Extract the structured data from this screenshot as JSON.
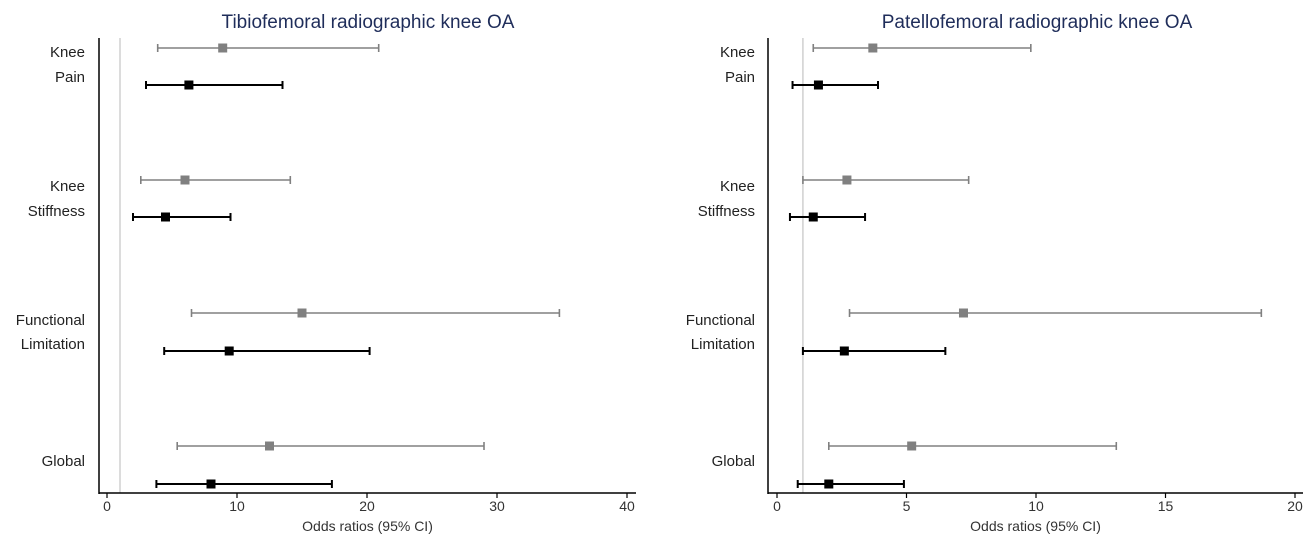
{
  "chart_data": [
    {
      "type": "forest",
      "title": "Tibiofemoral radiographic knee OA",
      "xlabel": "Odds ratios (95% CI)",
      "xlim": [
        0,
        40
      ],
      "xticks": [
        0,
        10,
        20,
        30,
        40
      ],
      "reference_line": 1,
      "series": [
        {
          "color": "#808080"
        },
        {
          "color": "#000000"
        }
      ],
      "categories": [
        {
          "label_lines": [
            "Knee",
            "Pain"
          ],
          "estimates": [
            {
              "or": 8.9,
              "low": 3.9,
              "high": 20.9
            },
            {
              "or": 6.3,
              "low": 3.0,
              "high": 13.5
            }
          ]
        },
        {
          "label_lines": [
            "Knee",
            "Stiffness"
          ],
          "estimates": [
            {
              "or": 6.0,
              "low": 2.6,
              "high": 14.1
            },
            {
              "or": 4.5,
              "low": 2.0,
              "high": 9.5
            }
          ]
        },
        {
          "label_lines": [
            "Functional",
            "Limitation"
          ],
          "estimates": [
            {
              "or": 15.0,
              "low": 6.5,
              "high": 34.8
            },
            {
              "or": 9.4,
              "low": 4.4,
              "high": 20.2
            }
          ]
        },
        {
          "label_lines": [
            "Global"
          ],
          "estimates": [
            {
              "or": 12.5,
              "low": 5.4,
              "high": 29.0
            },
            {
              "or": 8.0,
              "low": 3.8,
              "high": 17.3
            }
          ]
        }
      ]
    },
    {
      "type": "forest",
      "title": "Patellofemoral radiographic knee OA",
      "xlabel": "Odds ratios (95% CI)",
      "xlim": [
        0,
        20
      ],
      "xticks": [
        0,
        5,
        10,
        15,
        20
      ],
      "reference_line": 1,
      "series": [
        {
          "color": "#808080"
        },
        {
          "color": "#000000"
        }
      ],
      "categories": [
        {
          "label_lines": [
            "Knee",
            "Pain"
          ],
          "estimates": [
            {
              "or": 3.7,
              "low": 1.4,
              "high": 9.8
            },
            {
              "or": 1.6,
              "low": 0.6,
              "high": 3.9
            }
          ]
        },
        {
          "label_lines": [
            "Knee",
            "Stiffness"
          ],
          "estimates": [
            {
              "or": 2.7,
              "low": 1.0,
              "high": 7.4
            },
            {
              "or": 1.4,
              "low": 0.5,
              "high": 3.4
            }
          ]
        },
        {
          "label_lines": [
            "Functional",
            "Limitation"
          ],
          "estimates": [
            {
              "or": 7.2,
              "low": 2.8,
              "high": 18.7
            },
            {
              "or": 2.6,
              "low": 1.0,
              "high": 6.5
            }
          ]
        },
        {
          "label_lines": [
            "Global"
          ],
          "estimates": [
            {
              "or": 5.2,
              "low": 2.0,
              "high": 13.1
            },
            {
              "or": 2.0,
              "low": 0.8,
              "high": 4.9
            }
          ]
        }
      ]
    }
  ]
}
